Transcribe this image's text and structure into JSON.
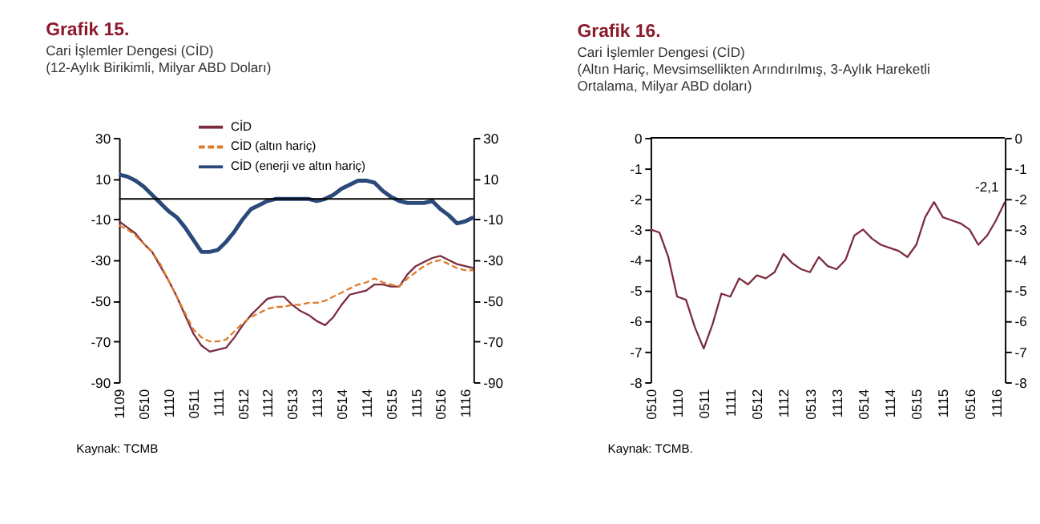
{
  "chart_data": [
    {
      "type": "line",
      "title": "Grafik 15.",
      "subtitle": "Cari İşlemler Dengesi (CİD)\n(12-Aylık Birikimli, Milyar ABD Doları)",
      "categories": [
        "1109",
        null,
        null,
        "0510",
        null,
        null,
        "1110",
        null,
        null,
        "0511",
        null,
        null,
        "1111",
        null,
        null,
        "0512",
        null,
        null,
        "1112",
        null,
        null,
        "0513",
        null,
        null,
        "1113",
        null,
        null,
        "0514",
        null,
        null,
        "1114",
        null,
        null,
        "0515",
        null,
        null,
        "1115",
        null,
        null,
        "0516",
        null,
        null,
        "1116",
        null
      ],
      "series": [
        {
          "name": "CİD",
          "color": "#7b2c3f",
          "line_style": "solid",
          "values": [
            -11,
            -14,
            -17,
            -22,
            -26,
            -33,
            -40,
            -48,
            -57,
            -66,
            -72,
            -75,
            -74,
            -73,
            -68,
            -62,
            -57,
            -53,
            -49,
            -48,
            -48,
            -52,
            -55,
            -57,
            -60,
            -62,
            -58,
            -52,
            -47,
            -46,
            -45,
            -42,
            -42,
            -43,
            -43,
            -37,
            -33,
            -31,
            -29,
            -28,
            -30,
            -32,
            -33,
            -34
          ]
        },
        {
          "name": "CİD (altın hariç)",
          "color": "#e07b2a",
          "line_style": "dashed",
          "values": [
            -13,
            -15,
            -18,
            -22,
            -26,
            -32,
            -40,
            -48,
            -56,
            -64,
            -68,
            -70,
            -70,
            -69,
            -65,
            -61,
            -58,
            -56,
            -54,
            -53,
            -53,
            -52,
            -52,
            -51,
            -51,
            -50,
            -48,
            -46,
            -44,
            -42,
            -41,
            -39,
            -41,
            -42,
            -43,
            -39,
            -36,
            -33,
            -31,
            -30,
            -32,
            -34,
            -35,
            -35
          ]
        },
        {
          "name": "CİD (enerji ve altın hariç)",
          "color": "#2b4a7a",
          "line_style": "solid",
          "values": [
            12,
            11,
            9,
            6,
            2,
            -2,
            -6,
            -9,
            -14,
            -20,
            -26,
            -26,
            -25,
            -21,
            -16,
            -10,
            -5,
            -3,
            -1,
            0,
            0,
            0,
            0,
            0,
            -1,
            0,
            2,
            5,
            7,
            9,
            9,
            8,
            4,
            1,
            -1,
            -2,
            -2,
            -2,
            -1,
            -5,
            -8,
            -12,
            -11,
            -9
          ]
        }
      ],
      "ylim": [
        -90,
        30
      ],
      "yticks": [
        -90,
        -70,
        -50,
        -30,
        -10,
        10,
        30
      ],
      "y2lim": [
        -90,
        30
      ],
      "y2ticks": [
        -90,
        -70,
        -50,
        -30,
        -10,
        10,
        30
      ],
      "ref_lines": [
        {
          "axis": "y",
          "value": 0
        }
      ],
      "legend": "top",
      "annotations": [
        "Kaynak: TCMB"
      ]
    },
    {
      "type": "line",
      "title": "Grafik 16.",
      "subtitle": "Cari İşlemler Dengesi (CİD)\n(Altın Hariç, Mevsimsellikten Arındırılmış, 3-Aylık Hareketli\nOrtalama, Milyar ABD doları)",
      "categories": [
        "0510",
        null,
        null,
        "1110",
        null,
        null,
        "0511",
        null,
        null,
        "1111",
        null,
        null,
        "0512",
        null,
        null,
        "1112",
        null,
        null,
        "0513",
        null,
        null,
        "1113",
        null,
        null,
        "0514",
        null,
        null,
        "1114",
        null,
        null,
        "0515",
        null,
        null,
        "1115",
        null,
        null,
        "0516",
        null,
        null,
        "1116",
        null
      ],
      "series": [
        {
          "color": "#7b2c3f",
          "line_style": "solid",
          "values": [
            -3.0,
            -3.1,
            -3.9,
            -5.2,
            -5.3,
            -6.2,
            -6.9,
            -6.1,
            -5.1,
            -5.2,
            -4.6,
            -4.8,
            -4.5,
            -4.6,
            -4.4,
            -3.8,
            -4.1,
            -4.3,
            -4.4,
            -3.9,
            -4.2,
            -4.3,
            -4.0,
            -3.2,
            -3.0,
            -3.3,
            -3.5,
            -3.6,
            -3.7,
            -3.9,
            -3.5,
            -2.6,
            -2.1,
            -2.6,
            -2.7,
            -2.8,
            -3.0,
            -3.5,
            -3.2,
            -2.7,
            -2.1
          ]
        }
      ],
      "ylim": [
        -8,
        0
      ],
      "yticks": [
        -8,
        -7,
        -6,
        -5,
        -4,
        -3,
        -2,
        -1,
        0
      ],
      "y2lim": [
        -8,
        0
      ],
      "y2ticks": [
        -8,
        -7,
        -6,
        -5,
        -4,
        -3,
        -2,
        -1,
        0
      ],
      "ref_lines": [
        {
          "axis": "y",
          "value": 0
        }
      ],
      "annotations": [
        "-2,1",
        "Kaynak: TCMB."
      ]
    }
  ]
}
